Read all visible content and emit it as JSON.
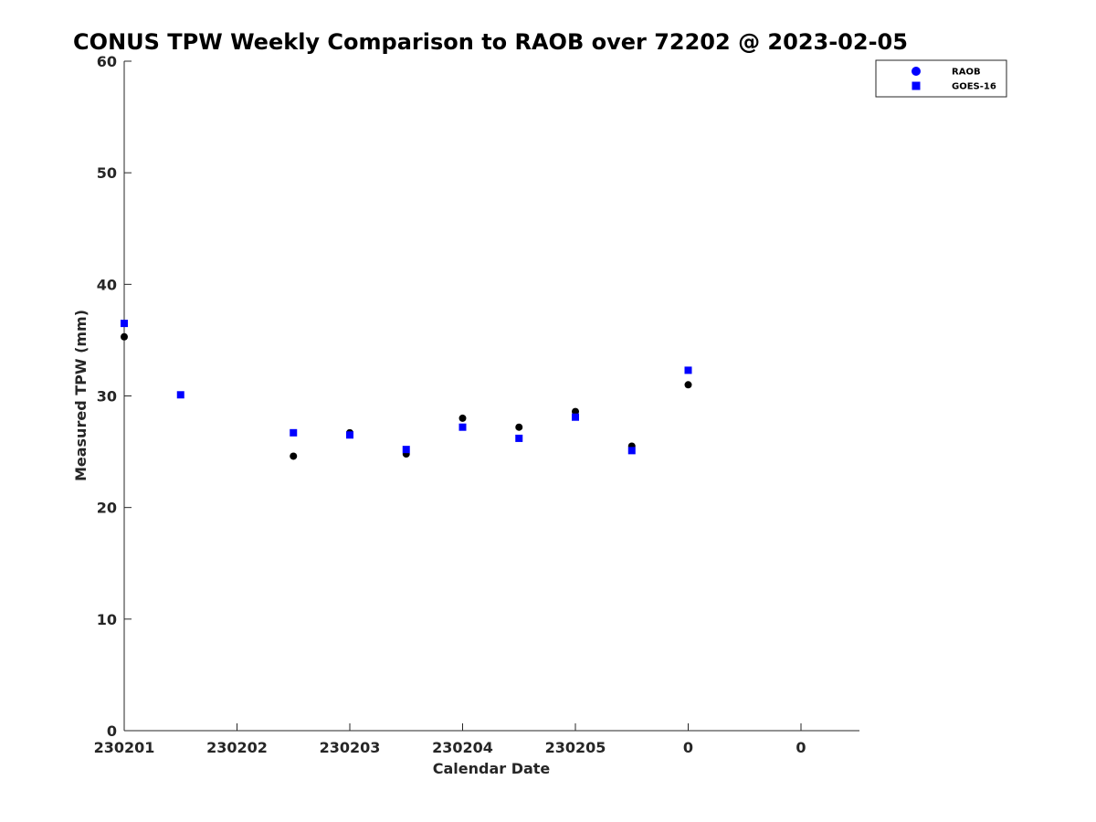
{
  "chart_data": {
    "type": "scatter",
    "title": "CONUS TPW Weekly Comparison to RAOB over 72202 @ 2023-02-05",
    "xlabel": "Calendar Date",
    "ylabel": "Measured TPW (mm)",
    "xlim": [
      0,
      6.5
    ],
    "ylim": [
      0,
      60
    ],
    "x_ticks": [
      0,
      1,
      2,
      3,
      4,
      5,
      6
    ],
    "x_tick_labels": [
      "230201",
      "230202",
      "230203",
      "230204",
      "230205",
      "0",
      "0"
    ],
    "y_ticks": [
      0,
      10,
      20,
      30,
      40,
      50,
      60
    ],
    "y_tick_labels": [
      "0",
      "10",
      "20",
      "30",
      "40",
      "50",
      "60"
    ],
    "grid": false,
    "legend_position": "top-right",
    "series": [
      {
        "name": "RAOB",
        "marker": "circle",
        "color": "#000000",
        "legend_color": "#0000ff",
        "x": [
          0,
          1.5,
          2.0,
          2.5,
          3.0,
          3.5,
          4.0,
          4.5,
          5.0
        ],
        "y": [
          35.3,
          24.6,
          26.7,
          24.8,
          28.0,
          27.2,
          28.6,
          25.5,
          31.0
        ]
      },
      {
        "name": "GOES-16",
        "marker": "square",
        "color": "#0000ff",
        "x": [
          0,
          0.5,
          1.5,
          2.0,
          2.5,
          3.0,
          3.5,
          4.0,
          4.5,
          5.0
        ],
        "y": [
          36.5,
          30.1,
          26.7,
          26.5,
          25.2,
          27.2,
          26.2,
          28.1,
          25.1,
          32.3
        ]
      }
    ]
  }
}
